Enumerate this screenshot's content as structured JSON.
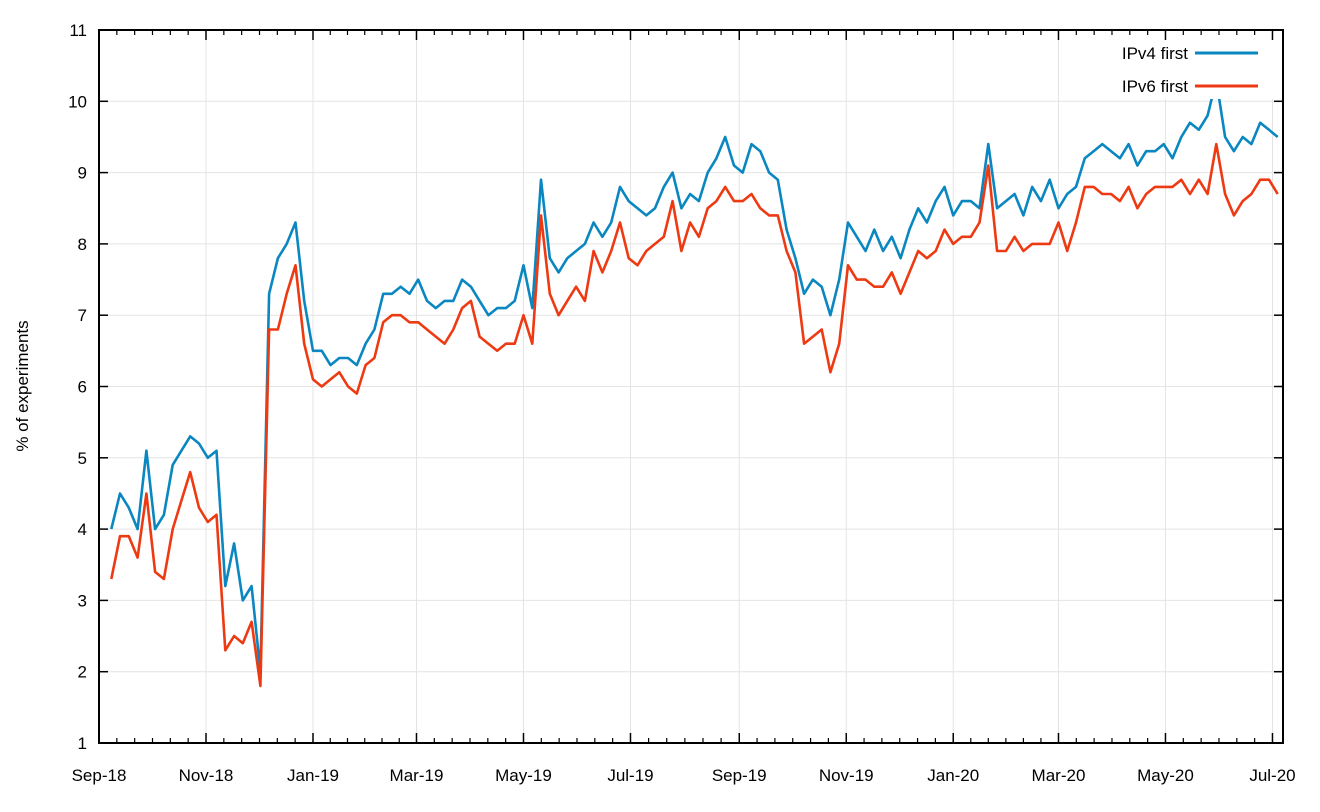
{
  "chart_data": {
    "type": "line",
    "title": "",
    "xlabel": "",
    "ylabel": "% of experiments",
    "xlim": [
      "2018-09-01",
      "2020-07-07"
    ],
    "ylim": [
      1,
      11
    ],
    "yticks": [
      1,
      2,
      3,
      4,
      5,
      6,
      7,
      8,
      9,
      10,
      11
    ],
    "xticks": [
      {
        "date": "2018-09-01",
        "label": "Sep-18"
      },
      {
        "date": "2018-11-01",
        "label": "Nov-18"
      },
      {
        "date": "2019-01-01",
        "label": "Jan-19"
      },
      {
        "date": "2019-03-01",
        "label": "Mar-19"
      },
      {
        "date": "2019-05-01",
        "label": "May-19"
      },
      {
        "date": "2019-07-01",
        "label": "Jul-19"
      },
      {
        "date": "2019-09-01",
        "label": "Sep-19"
      },
      {
        "date": "2019-11-01",
        "label": "Nov-19"
      },
      {
        "date": "2020-01-01",
        "label": "Jan-20"
      },
      {
        "date": "2020-03-01",
        "label": "Mar-20"
      },
      {
        "date": "2020-05-01",
        "label": "May-20"
      },
      {
        "date": "2020-07-01",
        "label": "Jul-20"
      }
    ],
    "grid": true,
    "legend_position": "top-right",
    "x": [
      "2018-09-08",
      "2018-09-13",
      "2018-09-18",
      "2018-09-23",
      "2018-09-28",
      "2018-10-03",
      "2018-10-08",
      "2018-10-13",
      "2018-10-18",
      "2018-10-23",
      "2018-10-28",
      "2018-11-02",
      "2018-11-07",
      "2018-11-12",
      "2018-11-17",
      "2018-11-22",
      "2018-11-27",
      "2018-12-02",
      "2018-12-07",
      "2018-12-12",
      "2018-12-17",
      "2018-12-22",
      "2018-12-27",
      "2019-01-01",
      "2019-01-06",
      "2019-01-11",
      "2019-01-16",
      "2019-01-21",
      "2019-01-26",
      "2019-01-31",
      "2019-02-05",
      "2019-02-10",
      "2019-02-15",
      "2019-02-20",
      "2019-02-25",
      "2019-03-02",
      "2019-03-07",
      "2019-03-12",
      "2019-03-17",
      "2019-03-22",
      "2019-03-27",
      "2019-04-01",
      "2019-04-06",
      "2019-04-11",
      "2019-04-16",
      "2019-04-21",
      "2019-04-26",
      "2019-05-01",
      "2019-05-06",
      "2019-05-11",
      "2019-05-16",
      "2019-05-21",
      "2019-05-26",
      "2019-05-31",
      "2019-06-05",
      "2019-06-10",
      "2019-06-15",
      "2019-06-20",
      "2019-06-25",
      "2019-06-30",
      "2019-07-05",
      "2019-07-10",
      "2019-07-15",
      "2019-07-20",
      "2019-07-25",
      "2019-07-30",
      "2019-08-04",
      "2019-08-09",
      "2019-08-14",
      "2019-08-19",
      "2019-08-24",
      "2019-08-29",
      "2019-09-03",
      "2019-09-08",
      "2019-09-13",
      "2019-09-18",
      "2019-09-23",
      "2019-09-28",
      "2019-10-03",
      "2019-10-08",
      "2019-10-13",
      "2019-10-18",
      "2019-10-23",
      "2019-10-28",
      "2019-11-02",
      "2019-11-07",
      "2019-11-12",
      "2019-11-17",
      "2019-11-22",
      "2019-11-27",
      "2019-12-02",
      "2019-12-07",
      "2019-12-12",
      "2019-12-17",
      "2019-12-22",
      "2019-12-27",
      "2020-01-01",
      "2020-01-06",
      "2020-01-11",
      "2020-01-16",
      "2020-01-21",
      "2020-01-26",
      "2020-01-31",
      "2020-02-05",
      "2020-02-10",
      "2020-02-15",
      "2020-02-20",
      "2020-02-25",
      "2020-03-01",
      "2020-03-06",
      "2020-03-11",
      "2020-03-16",
      "2020-03-21",
      "2020-03-26",
      "2020-03-31",
      "2020-04-05",
      "2020-04-10",
      "2020-04-15",
      "2020-04-20",
      "2020-04-25",
      "2020-04-30",
      "2020-05-05",
      "2020-05-10",
      "2020-05-15",
      "2020-05-20",
      "2020-05-25",
      "2020-05-30",
      "2020-06-04",
      "2020-06-09",
      "2020-06-14",
      "2020-06-19",
      "2020-06-24",
      "2020-06-29",
      "2020-07-04"
    ],
    "series": [
      {
        "name": "IPv4 first",
        "color": "#0a87c0",
        "values": [
          4.0,
          4.5,
          4.3,
          4.0,
          5.1,
          4.0,
          4.2,
          4.9,
          5.1,
          5.3,
          5.2,
          5.0,
          5.1,
          3.2,
          3.8,
          3.0,
          3.2,
          2.0,
          7.3,
          7.8,
          8.0,
          8.3,
          7.2,
          6.5,
          6.5,
          6.3,
          6.4,
          6.4,
          6.3,
          6.6,
          6.8,
          7.3,
          7.3,
          7.4,
          7.3,
          7.5,
          7.2,
          7.1,
          7.2,
          7.2,
          7.5,
          7.4,
          7.2,
          7.0,
          7.1,
          7.1,
          7.2,
          7.7,
          7.1,
          8.9,
          7.8,
          7.6,
          7.8,
          7.9,
          8.0,
          8.3,
          8.1,
          8.3,
          8.8,
          8.6,
          8.5,
          8.4,
          8.5,
          8.8,
          9.0,
          8.5,
          8.7,
          8.6,
          9.0,
          9.2,
          9.5,
          9.1,
          9.0,
          9.4,
          9.3,
          9.0,
          8.9,
          8.2,
          7.8,
          7.3,
          7.5,
          7.4,
          7.0,
          7.5,
          8.3,
          8.1,
          7.9,
          8.2,
          7.9,
          8.1,
          7.8,
          8.2,
          8.5,
          8.3,
          8.6,
          8.8,
          8.4,
          8.6,
          8.6,
          8.5,
          9.4,
          8.5,
          8.6,
          8.7,
          8.4,
          8.8,
          8.6,
          8.9,
          8.5,
          8.7,
          8.8,
          9.2,
          9.3,
          9.4,
          9.3,
          9.2,
          9.4,
          9.1,
          9.3,
          9.3,
          9.4,
          9.2,
          9.5,
          9.7,
          9.6,
          9.8,
          10.3,
          9.5,
          9.3,
          9.5,
          9.4,
          9.7,
          9.6,
          9.5
        ]
      },
      {
        "name": "IPv6 first",
        "color": "#ee3a12",
        "values": [
          3.3,
          3.9,
          3.9,
          3.6,
          4.5,
          3.4,
          3.3,
          4.0,
          4.4,
          4.8,
          4.3,
          4.1,
          4.2,
          2.3,
          2.5,
          2.4,
          2.7,
          1.8,
          6.8,
          6.8,
          7.3,
          7.7,
          6.6,
          6.1,
          6.0,
          6.1,
          6.2,
          6.0,
          5.9,
          6.3,
          6.4,
          6.9,
          7.0,
          7.0,
          6.9,
          6.9,
          6.8,
          6.7,
          6.6,
          6.8,
          7.1,
          7.2,
          6.7,
          6.6,
          6.5,
          6.6,
          6.6,
          7.0,
          6.6,
          8.4,
          7.3,
          7.0,
          7.2,
          7.4,
          7.2,
          7.9,
          7.6,
          7.9,
          8.3,
          7.8,
          7.7,
          7.9,
          8.0,
          8.1,
          8.6,
          7.9,
          8.3,
          8.1,
          8.5,
          8.6,
          8.8,
          8.6,
          8.6,
          8.7,
          8.5,
          8.4,
          8.4,
          7.9,
          7.6,
          6.6,
          6.7,
          6.8,
          6.2,
          6.6,
          7.7,
          7.5,
          7.5,
          7.4,
          7.4,
          7.6,
          7.3,
          7.6,
          7.9,
          7.8,
          7.9,
          8.2,
          8.0,
          8.1,
          8.1,
          8.3,
          9.1,
          7.9,
          7.9,
          8.1,
          7.9,
          8.0,
          8.0,
          8.0,
          8.3,
          7.9,
          8.3,
          8.8,
          8.8,
          8.7,
          8.7,
          8.6,
          8.8,
          8.5,
          8.7,
          8.8,
          8.8,
          8.8,
          8.9,
          8.7,
          8.9,
          8.7,
          9.4,
          8.7,
          8.4,
          8.6,
          8.7,
          8.9,
          8.9,
          8.7
        ]
      }
    ]
  }
}
